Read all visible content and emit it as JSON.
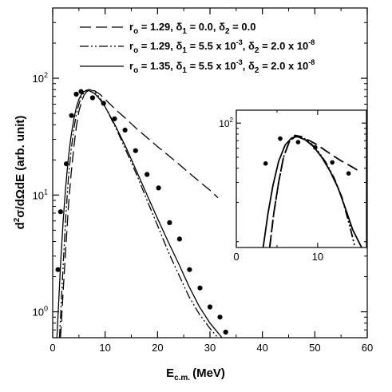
{
  "chart_data": [
    {
      "type": "line",
      "panel": "main",
      "xlabel_main": "E",
      "xlabel_sub": "c.m.",
      "xlabel_unit": "(MeV)",
      "ylabel": {
        "p1": "d",
        "p2": "2",
        "p3": "σ/dΩdE (arb. unit)"
      },
      "xlim": [
        0,
        60
      ],
      "ylim": [
        0.6,
        400
      ],
      "yscale": "log",
      "grid": false,
      "legend_placement": "top-right",
      "x_ticks": [
        {
          "value": 0,
          "label": "0"
        },
        {
          "value": 10,
          "label": "10"
        },
        {
          "value": 20,
          "label": "20"
        },
        {
          "value": 30,
          "label": "30"
        },
        {
          "value": 40,
          "label": "40"
        },
        {
          "value": 50,
          "label": "50"
        },
        {
          "value": 60,
          "label": "60"
        }
      ],
      "y_ticks": [
        {
          "value": 1,
          "base": "10",
          "exp": "0"
        },
        {
          "value": 10,
          "base": "10",
          "exp": "1"
        },
        {
          "value": 100,
          "base": "10",
          "exp": "2"
        }
      ],
      "legend_entries": [
        {
          "r_label": "r",
          "r_sub": "o",
          "r_val": " = 1.29, ",
          "d1_label": "δ",
          "d1_sub": "1",
          "d1_val": " = 0.0, ",
          "d2_label": "δ",
          "d2_sub": "2",
          "d2_val": " = 0.0",
          "d1_exp": "",
          "d2_exp": "",
          "d1_tail": "",
          "d2_tail": ""
        },
        {
          "r_label": "r",
          "r_sub": "o",
          "r_val": " = 1.29, ",
          "d1_label": "δ",
          "d1_sub": "1",
          "d1_val": " = 5.5 x 10",
          "d1_exp": "-3",
          "d1_tail": ", ",
          "d2_label": "δ",
          "d2_sub": "2",
          "d2_val": " = 2.0 x 10",
          "d2_exp": "-8",
          "d2_tail": ""
        },
        {
          "r_label": "r",
          "r_sub": "o",
          "r_val": " = 1.35, ",
          "d1_label": "δ",
          "d1_sub": "1",
          "d1_val": " = 5.5 x 10",
          "d1_exp": "-3",
          "d1_tail": ", ",
          "d2_label": "δ",
          "d2_sub": "2",
          "d2_val": " = 2.0 x 10",
          "d2_exp": "-8",
          "d2_tail": ""
        }
      ],
      "series": [
        {
          "style": "dashed",
          "x": [
            1.5,
            2,
            2.5,
            3,
            3.5,
            4,
            4.5,
            5,
            5.5,
            6,
            6.5,
            7,
            8,
            9,
            10,
            12,
            14,
            16,
            18,
            20,
            22,
            24,
            26,
            28,
            30,
            31.5
          ],
          "y": [
            0.6,
            1.5,
            3.5,
            8,
            15,
            25,
            38,
            52,
            63,
            72,
            77,
            79,
            78,
            73,
            66,
            54,
            45,
            37,
            31,
            26,
            22,
            18.5,
            15.5,
            13,
            11,
            9.5
          ]
        },
        {
          "style": "dash-dot-dot",
          "x": [
            1.3,
            2,
            2.5,
            3,
            3.5,
            4,
            4.5,
            5,
            5.5,
            6,
            6.5,
            7,
            8,
            9,
            10,
            12,
            14,
            16,
            18,
            20,
            22,
            24,
            26,
            28,
            30,
            31.5
          ],
          "y": [
            0.6,
            2.5,
            6.5,
            14,
            24,
            36,
            49,
            60,
            70,
            76,
            79,
            80,
            77,
            68,
            57,
            38,
            24,
            15,
            9,
            5.5,
            3.3,
            2.1,
            1.35,
            0.95,
            0.72,
            0.6
          ]
        },
        {
          "style": "solid",
          "x": [
            0.8,
            1.5,
            2,
            2.5,
            3,
            3.5,
            4,
            4.5,
            5,
            5.5,
            6,
            6.5,
            7,
            8,
            9,
            10,
            12,
            14,
            16,
            18,
            20,
            22,
            24,
            26,
            28,
            30,
            32.3
          ],
          "y": [
            0.6,
            2.5,
            6,
            12,
            21,
            32,
            44,
            56,
            66,
            73,
            77,
            79,
            78,
            74,
            66,
            57,
            39,
            25.5,
            16,
            10,
            6.3,
            4,
            2.6,
            1.65,
            1.1,
            0.8,
            0.6
          ]
        }
      ],
      "points": {
        "x": [
          1.0,
          1.5,
          2.6,
          3.6,
          4.5,
          5.4,
          7.6,
          9.7,
          11.8,
          13.8,
          15.8,
          18.0,
          20.2,
          22.3,
          24.2,
          26.1,
          28.1,
          30.0,
          31.9,
          33.0
        ],
        "y": [
          2.3,
          7.2,
          18.5,
          48,
          73,
          77,
          68,
          61,
          45,
          36,
          24,
          15,
          11.5,
          5.8,
          4.2,
          2.3,
          1.6,
          1.1,
          0.9,
          0.67
        ]
      }
    },
    {
      "type": "line",
      "panel": "inset",
      "xlim": [
        0,
        16
      ],
      "ylim": [
        8,
        130
      ],
      "yscale": "log",
      "x_ticks": [
        {
          "value": 0,
          "label": "0"
        },
        {
          "value": 10,
          "label": "10"
        }
      ],
      "y_ticks": [
        {
          "value": 100,
          "base": "10",
          "exp": "2"
        }
      ],
      "series": [
        {
          "style": "dashed",
          "x": [
            4.1,
            4.6,
            5.2,
            5.8,
            6.5,
            7.2,
            8,
            9,
            10,
            11,
            12,
            13,
            14,
            15.3
          ],
          "y": [
            8,
            16,
            30,
            50,
            68,
            76,
            75,
            70,
            64,
            57,
            51,
            46,
            42,
            37
          ]
        },
        {
          "style": "dash-dot-dot",
          "x": [
            4.1,
            4.6,
            5.2,
            5.8,
            6.5,
            7.2,
            8,
            9,
            10,
            11,
            12,
            13,
            14,
            14.6
          ],
          "y": [
            8,
            16,
            30,
            50,
            68,
            78,
            76,
            68,
            57,
            45,
            33,
            22,
            12,
            8
          ]
        },
        {
          "style": "solid",
          "x": [
            3.3,
            3.9,
            4.5,
            5.2,
            6,
            6.8,
            7.5,
            8.5,
            9.5,
            10.5,
            11.5,
            12.5,
            13.5,
            14.3,
            15.4
          ],
          "y": [
            8,
            16,
            28,
            46,
            64,
            74,
            76,
            71,
            62,
            50,
            38,
            27,
            17,
            11.5,
            8
          ]
        }
      ],
      "points": {
        "x": [
          3.6,
          5.4,
          7.6,
          9.7,
          11.8,
          13.8
        ],
        "y": [
          44,
          73,
          68,
          61,
          45,
          36
        ]
      }
    }
  ]
}
